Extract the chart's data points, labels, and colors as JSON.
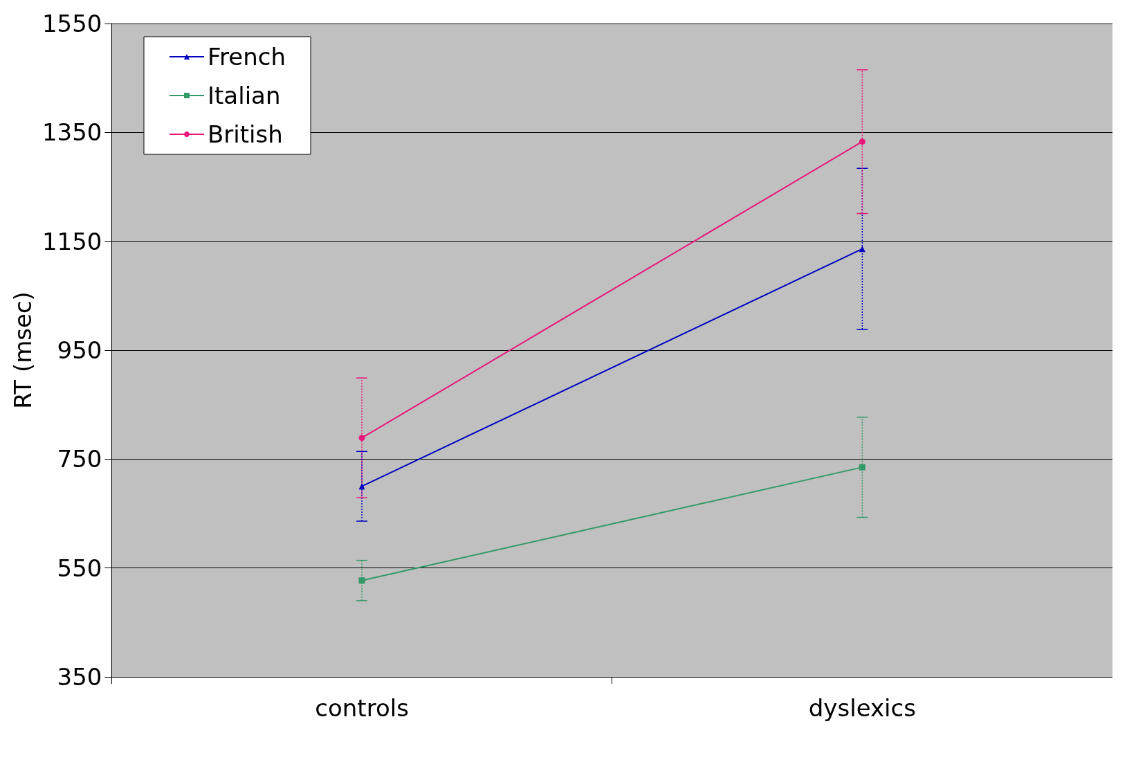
{
  "chart_data": {
    "type": "line",
    "ylabel": "RT (msec)",
    "categories": [
      "controls",
      "dyslexics"
    ],
    "ylim": [
      350,
      1550
    ],
    "yticks": [
      350,
      550,
      750,
      950,
      1150,
      1350,
      1550
    ],
    "grid": "y",
    "legend": "top left",
    "series": [
      {
        "name": "French",
        "color": "#0000c0",
        "marker": "triangle",
        "values": [
          700,
          1136
        ],
        "errors": [
          64,
          148
        ]
      },
      {
        "name": "Italian",
        "color": "#339966",
        "marker": "square",
        "values": [
          527,
          735
        ],
        "errors": [
          37,
          92
        ]
      },
      {
        "name": "British",
        "color": "#e6197a",
        "marker": "circle",
        "values": [
          789,
          1333
        ],
        "errors": [
          110,
          132
        ]
      }
    ]
  }
}
